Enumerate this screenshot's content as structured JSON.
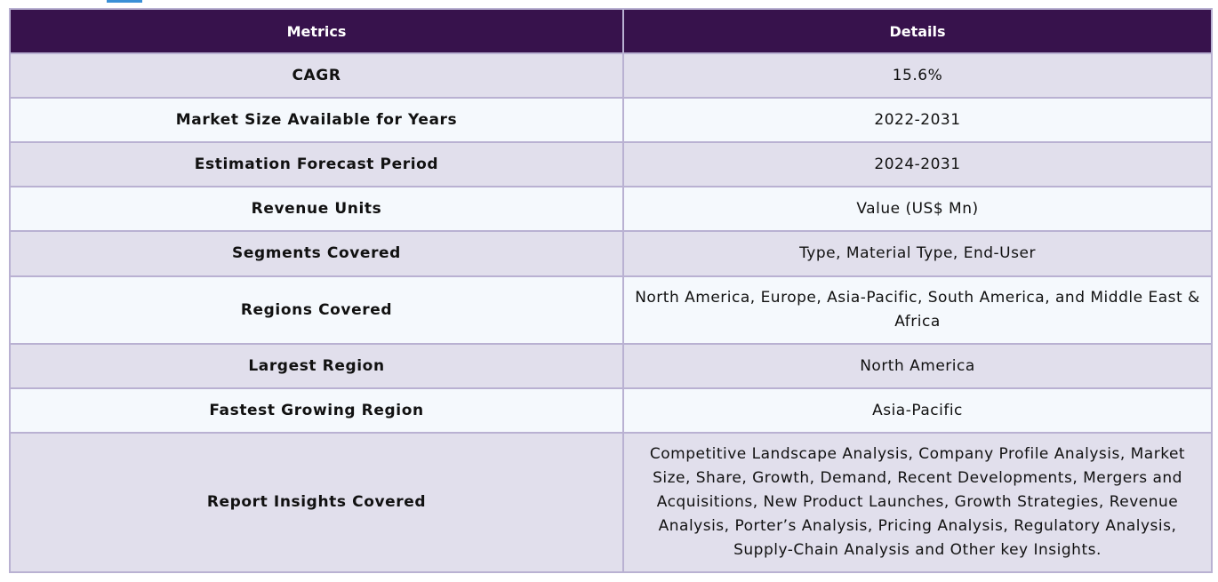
{
  "table": {
    "headers": {
      "metric": "Metrics",
      "details": "Details"
    },
    "rows": [
      {
        "metric": "CAGR",
        "details": "15.6%"
      },
      {
        "metric": "Market Size Available for Years",
        "details": "2022-2031"
      },
      {
        "metric": "Estimation Forecast Period",
        "details": "2024-2031"
      },
      {
        "metric": "Revenue Units",
        "details": "Value (US$ Mn)"
      },
      {
        "metric": "Segments Covered",
        "details": "Type, Material Type, End-User"
      },
      {
        "metric": "Regions Covered",
        "details": "North America, Europe, Asia-Pacific, South America, and Middle East & Africa"
      },
      {
        "metric": "Largest Region",
        "details": "North America"
      },
      {
        "metric": "Fastest Growing Region",
        "details": "Asia-Pacific"
      },
      {
        "metric": "Report Insights Covered",
        "details": "Competitive Landscape Analysis, Company Profile Analysis, Market Size, Share, Growth, Demand, Recent Developments, Mergers and Acquisitions, New Product Launches, Growth Strategies, Revenue Analysis, Porter’s Analysis, Pricing Analysis, Regulatory Analysis, Supply-Chain Analysis and Other key Insights."
      }
    ]
  },
  "colors": {
    "header_bg": "#37124c",
    "row_odd_bg": "#e1dfec",
    "row_even_bg": "#f5f9fd",
    "border": "#b9b1d2"
  }
}
